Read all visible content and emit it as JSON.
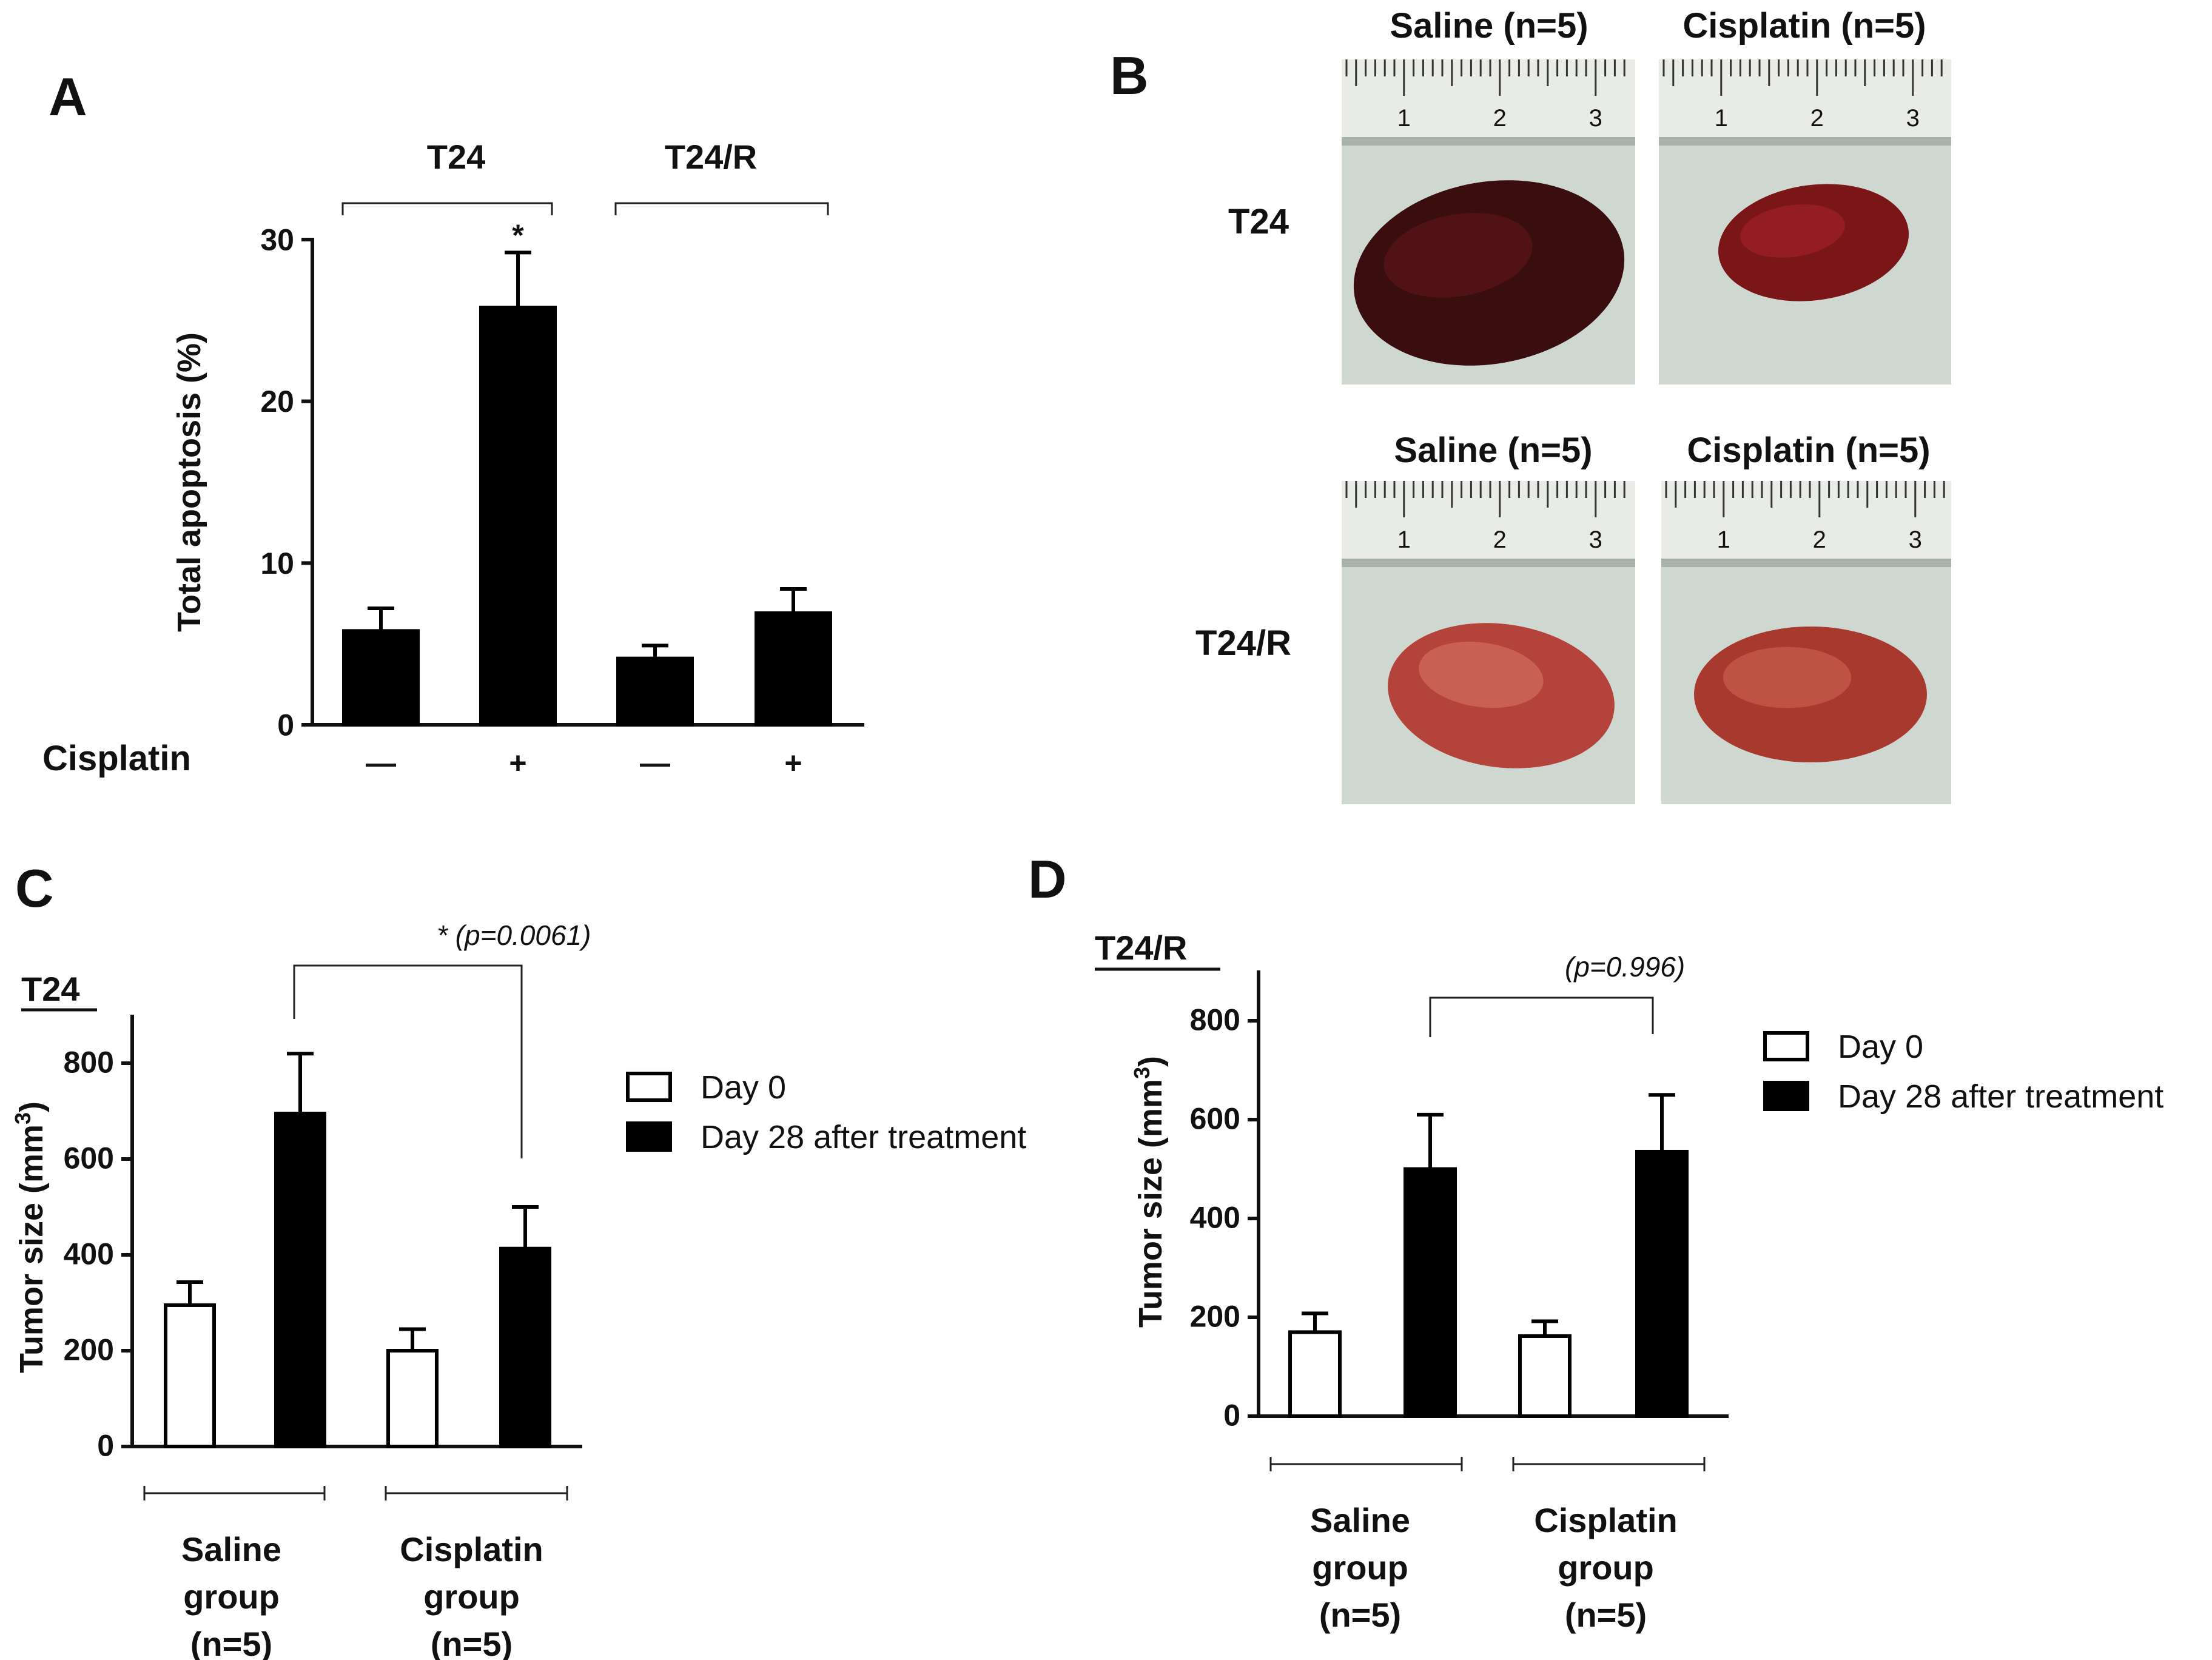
{
  "panels": {
    "a": {
      "label": "A"
    },
    "b": {
      "label": "B"
    },
    "c": {
      "label": "C"
    },
    "d": {
      "label": "D"
    }
  },
  "colors": {
    "filled": "#000000",
    "open": "#ffffff",
    "ink": "#111111"
  },
  "panel_b": {
    "row_labels": [
      "T24",
      "T24/R"
    ],
    "col_labels": [
      "Saline (n=5)",
      "Cisplatin (n=5)"
    ],
    "ruler_marks": [
      "1",
      "2",
      "3"
    ]
  },
  "chart_data": [
    {
      "id": "A",
      "type": "bar",
      "ylabel": "Total apoptosis (%)",
      "ylim": [
        0,
        30
      ],
      "yticks": [
        0,
        10,
        20,
        30
      ],
      "row_label": "Cisplatin",
      "groups": [
        "T24",
        "T24/R"
      ],
      "categories": [
        "—",
        "+",
        "—",
        "+"
      ],
      "values": [
        5.8,
        25.8,
        4.1,
        6.9
      ],
      "errors": [
        1.4,
        3.4,
        0.8,
        1.5
      ],
      "annotations": [
        "*"
      ],
      "legend": "none",
      "grid": false
    },
    {
      "id": "C",
      "type": "bar",
      "title": "T24",
      "ylabel": "Tumor size (mm3)",
      "ylim": [
        0,
        900
      ],
      "yticks": [
        0,
        200,
        400,
        600,
        800
      ],
      "categories": [
        "Saline group (n=5)",
        "Cisplatin group (n=5)"
      ],
      "series": [
        {
          "name": "Day 0",
          "values": [
            295,
            200
          ],
          "errors": [
            48,
            45
          ]
        },
        {
          "name": "Day 28 after treatment",
          "values": [
            695,
            413
          ],
          "errors": [
            125,
            87
          ]
        }
      ],
      "annotations": [
        "* (p=0.0061)"
      ],
      "legend": "right",
      "grid": false
    },
    {
      "id": "D",
      "type": "bar",
      "title": "T24/R",
      "ylabel": "Tumor size (mm3)",
      "ylim": [
        0,
        900
      ],
      "yticks": [
        0,
        200,
        400,
        600,
        800
      ],
      "categories": [
        "Saline group (n=5)",
        "Cisplatin group (n=5)"
      ],
      "series": [
        {
          "name": "Day 0",
          "values": [
            170,
            162
          ],
          "errors": [
            38,
            30
          ]
        },
        {
          "name": "Day 28 after treatment",
          "values": [
            500,
            535
          ],
          "errors": [
            110,
            115
          ]
        }
      ],
      "annotations": [
        "(p=0.996)"
      ],
      "legend": "right",
      "grid": false
    }
  ]
}
